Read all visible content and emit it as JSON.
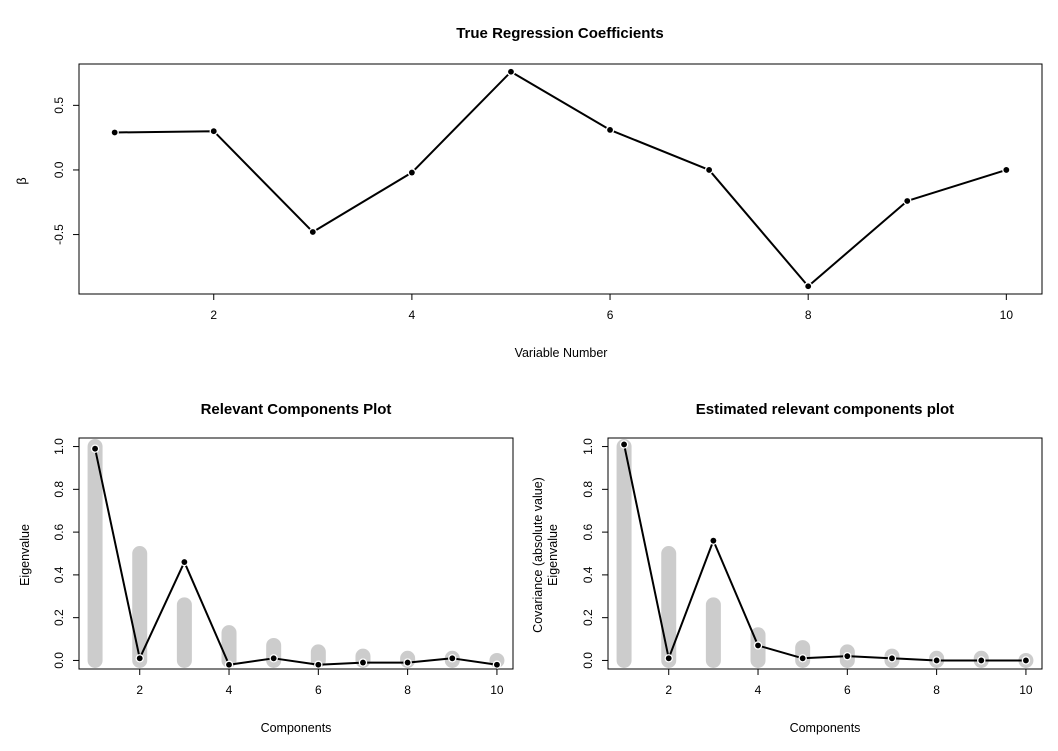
{
  "chart_data": [
    {
      "type": "line",
      "title": "True Regression Coefficients",
      "xlabel": "Variable Number",
      "ylabel": "β",
      "x": [
        1,
        2,
        3,
        4,
        5,
        6,
        7,
        8,
        9,
        10
      ],
      "series": [
        {
          "values": [
            0.29,
            0.3,
            -0.48,
            -0.02,
            0.76,
            0.31,
            0.0,
            -0.9,
            -0.24,
            0.0
          ]
        }
      ],
      "xlim": [
        0.64,
        10.36
      ],
      "ylim": [
        -0.96,
        0.82
      ],
      "xticks": [
        2,
        4,
        6,
        8,
        10
      ],
      "xtick_labels": [
        "2",
        "4",
        "6",
        "8",
        "10"
      ],
      "yticks": [
        -0.5,
        0.0,
        0.5
      ],
      "ytick_labels": [
        "-0.5",
        "0.0",
        "0.5"
      ],
      "grid": false,
      "colors": {
        "line": "#000000"
      }
    },
    {
      "type": "bar",
      "title": "Relevant Components Plot",
      "xlabel": "Components",
      "ylabel": "Eigenvalue",
      "x": [
        1,
        2,
        3,
        4,
        5,
        6,
        7,
        8,
        9,
        10
      ],
      "series": [
        {
          "kind": "bar",
          "values": [
            1.0,
            0.5,
            0.26,
            0.13,
            0.07,
            0.04,
            0.02,
            0.01,
            0.01,
            0.0
          ]
        },
        {
          "kind": "line",
          "values": [
            0.99,
            0.01,
            0.46,
            -0.02,
            0.01,
            -0.02,
            -0.01,
            -0.01,
            0.01,
            -0.02
          ]
        }
      ],
      "xlim": [
        0.64,
        10.36
      ],
      "ylim": [
        -0.04,
        1.04
      ],
      "xticks": [
        2,
        4,
        6,
        8,
        10
      ],
      "xtick_labels": [
        "2",
        "4",
        "6",
        "8",
        "10"
      ],
      "yticks": [
        0.0,
        0.2,
        0.4,
        0.6,
        0.8,
        1.0
      ],
      "ytick_labels": [
        "0.0",
        "0.2",
        "0.4",
        "0.6",
        "0.8",
        "1.0"
      ],
      "grid": false,
      "colors": {
        "bar": "#cccccc",
        "line": "#000000"
      }
    },
    {
      "type": "bar",
      "title": "Estimated relevant components plot",
      "xlabel": "Components",
      "ylabel": "Eigenvalue",
      "ylabel2": "Covariance (absolute value)",
      "x": [
        1,
        2,
        3,
        4,
        5,
        6,
        7,
        8,
        9,
        10
      ],
      "series": [
        {
          "kind": "bar",
          "values": [
            1.0,
            0.5,
            0.26,
            0.12,
            0.06,
            0.04,
            0.02,
            0.01,
            0.01,
            0.0
          ]
        },
        {
          "kind": "line",
          "values": [
            1.01,
            0.01,
            0.56,
            0.07,
            0.01,
            0.02,
            0.01,
            0.0,
            0.0,
            0.0
          ]
        }
      ],
      "xlim": [
        0.64,
        10.36
      ],
      "ylim": [
        -0.04,
        1.04
      ],
      "xticks": [
        2,
        4,
        6,
        8,
        10
      ],
      "xtick_labels": [
        "2",
        "4",
        "6",
        "8",
        "10"
      ],
      "yticks": [
        0.0,
        0.2,
        0.4,
        0.6,
        0.8,
        1.0
      ],
      "ytick_labels": [
        "0.0",
        "0.2",
        "0.4",
        "0.6",
        "0.8",
        "1.0"
      ],
      "grid": false,
      "colors": {
        "bar": "#cccccc",
        "line": "#000000"
      }
    }
  ]
}
